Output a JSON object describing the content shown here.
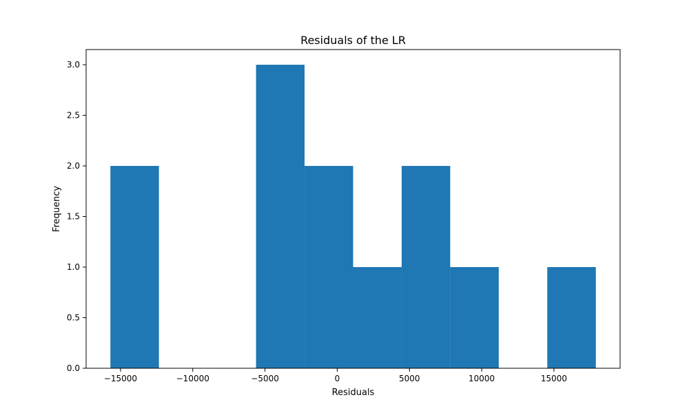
{
  "chart_data": {
    "type": "bar",
    "subtype": "histogram",
    "title": "Residuals of the LR",
    "xlabel": "Residuals",
    "ylabel": "Frequency",
    "bin_edges": [
      -15700,
      -12340,
      -8980,
      -5620,
      -2260,
      1100,
      4460,
      7820,
      11180,
      14540,
      17900
    ],
    "values": [
      2,
      0,
      0,
      3,
      2,
      1,
      2,
      1,
      0,
      1
    ],
    "xlim": [
      -17380,
      19580
    ],
    "ylim": [
      0,
      3.15
    ],
    "xticks": [
      -15000,
      -10000,
      -5000,
      0,
      5000,
      10000,
      15000
    ],
    "xtick_labels": [
      "−15000",
      "−10000",
      "−5000",
      "0",
      "5000",
      "10000",
      "15000"
    ],
    "yticks": [
      0,
      0.5,
      1,
      1.5,
      2,
      2.5,
      3
    ],
    "ytick_labels": [
      "0.0",
      "0.5",
      "1.0",
      "1.5",
      "2.0",
      "2.5",
      "3.0"
    ],
    "bar_color": "#1f77b4",
    "grid": false,
    "legend": "none"
  }
}
